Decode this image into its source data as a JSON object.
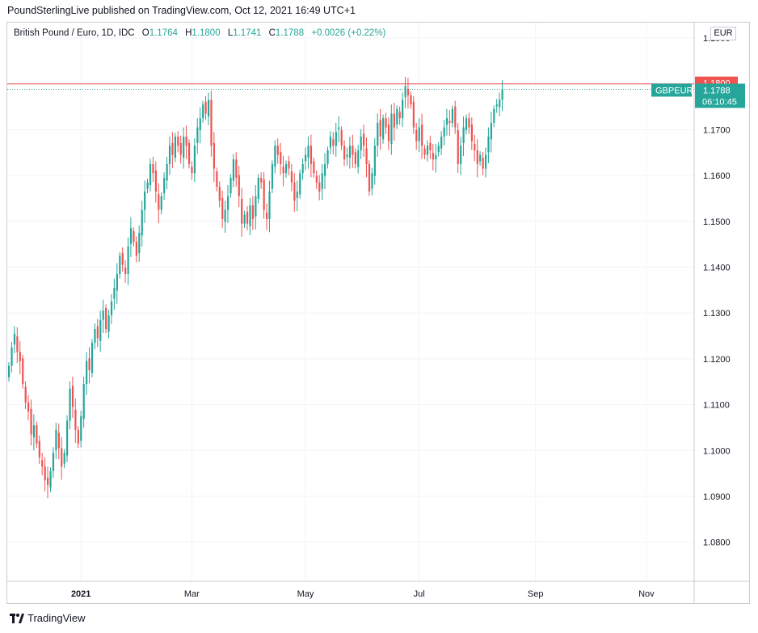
{
  "header": {
    "published_line": "PoundSterlingLive published on TradingView.com, Oct 12, 2021 16:49 UTC+1"
  },
  "legend": {
    "symbol": "British Pound / Euro, 1D, IDC",
    "open_label": "O",
    "open": "1.1764",
    "high_label": "H",
    "high": "1.1800",
    "low_label": "L",
    "low": "1.1741",
    "close_label": "C",
    "close": "1.1788",
    "change": "+0.0026 (+0.22%)"
  },
  "currency": "EUR",
  "price_tags": {
    "high_line": "1.1800",
    "ticker": "GBPEUR",
    "last": "1.1788",
    "countdown": "06:10:45"
  },
  "footer": {
    "brand": "TradingView"
  },
  "colors": {
    "up": "#26a69a",
    "down": "#ef5350",
    "grid": "#f0f3fa",
    "high_line": "#ef5350",
    "last_line": "#26a69a"
  },
  "chart_data": {
    "type": "candlestick",
    "symbol": "GBPEUR",
    "interval": "1D",
    "ylim": [
      1.072,
      1.193
    ],
    "y_ticks": [
      "1.1900",
      "1.1800",
      "1.1700",
      "1.1600",
      "1.1500",
      "1.1400",
      "1.1300",
      "1.1200",
      "1.1100",
      "1.1000",
      "1.0900",
      "1.0800"
    ],
    "x_ticks": [
      {
        "label": "2021",
        "bold": true,
        "bar": 26
      },
      {
        "label": "Mar",
        "bold": false,
        "bar": 66
      },
      {
        "label": "May",
        "bold": false,
        "bar": 107
      },
      {
        "label": "Jul",
        "bold": false,
        "bar": 148
      },
      {
        "label": "Sep",
        "bold": false,
        "bar": 190
      },
      {
        "label": "Nov",
        "bold": false,
        "bar": 230
      }
    ],
    "horizontal_line": 1.18,
    "last_price": 1.1788,
    "closes": [
      1.1185,
      1.1225,
      1.1255,
      1.1215,
      1.1195,
      1.1145,
      1.1105,
      1.1085,
      1.1035,
      1.1055,
      1.1015,
      1.0985,
      1.0965,
      1.0935,
      1.0925,
      1.0955,
      1.0995,
      1.1045,
      1.1005,
      1.0965,
      1.0995,
      1.1065,
      1.1135,
      1.1095,
      1.1045,
      1.1015,
      1.1075,
      1.1145,
      1.1195,
      1.1175,
      1.1235,
      1.1265,
      1.1245,
      1.1285,
      1.1305,
      1.1265,
      1.1295,
      1.1325,
      1.1355,
      1.1385,
      1.1425,
      1.1405,
      1.1385,
      1.1445,
      1.1485,
      1.1455,
      1.1425,
      1.1475,
      1.1525,
      1.1565,
      1.1585,
      1.1625,
      1.1605,
      1.1565,
      1.1525,
      1.1555,
      1.1595,
      1.1625,
      1.1665,
      1.1645,
      1.1685,
      1.1665,
      1.1645,
      1.1685,
      1.1665,
      1.1625,
      1.1605,
      1.1665,
      1.1705,
      1.1725,
      1.1755,
      1.1735,
      1.1765,
      1.1665,
      1.1615,
      1.1575,
      1.1545,
      1.1505,
      1.1525,
      1.1555,
      1.1595,
      1.1635,
      1.1595,
      1.1555,
      1.1495,
      1.1515,
      1.1495,
      1.1535,
      1.1505,
      1.1555,
      1.1595,
      1.1585,
      1.1525,
      1.1505,
      1.1565,
      1.1625,
      1.1665,
      1.1645,
      1.1625,
      1.1605,
      1.1625,
      1.1615,
      1.1585,
      1.1545,
      1.1565,
      1.1605,
      1.1625,
      1.1645,
      1.1665,
      1.1625,
      1.1605,
      1.1585,
      1.1565,
      1.1605,
      1.1625,
      1.1655,
      1.1685,
      1.1665,
      1.1695,
      1.1705,
      1.1665,
      1.1635,
      1.1645,
      1.1665,
      1.1645,
      1.1625,
      1.1655,
      1.1685,
      1.1665,
      1.1625,
      1.1565,
      1.1605,
      1.1665,
      1.1715,
      1.1685,
      1.1725,
      1.1705,
      1.1675,
      1.1735,
      1.1705,
      1.1745,
      1.1725,
      1.1765,
      1.1795,
      1.1775,
      1.1755,
      1.1705,
      1.1675,
      1.1705,
      1.1665,
      1.1645,
      1.1665,
      1.1655,
      1.1635,
      1.1645,
      1.1665,
      1.1685,
      1.1705,
      1.1725,
      1.1715,
      1.1745,
      1.1705,
      1.1625,
      1.1665,
      1.1705,
      1.1725,
      1.1705,
      1.1675,
      1.1655,
      1.1625,
      1.1645,
      1.1615,
      1.1645,
      1.1685,
      1.1715,
      1.1745,
      1.1755,
      1.1765,
      1.1788
    ]
  }
}
